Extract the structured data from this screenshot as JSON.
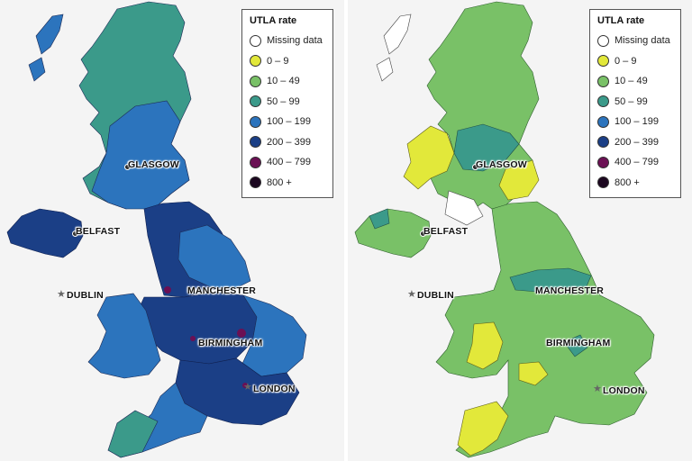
{
  "legend": {
    "title": "UTLA rate",
    "items": [
      {
        "label": "Missing data",
        "color": "#ffffff"
      },
      {
        "label": "0 – 9",
        "color": "#e2e83a"
      },
      {
        "label": "10 – 49",
        "color": "#79c167"
      },
      {
        "label": "50 – 99",
        "color": "#3b9a8a"
      },
      {
        "label": "100 – 199",
        "color": "#2c74bd"
      },
      {
        "label": "200 – 399",
        "color": "#1b3f86"
      },
      {
        "label": "400 – 799",
        "color": "#6b1054"
      },
      {
        "label": "800 +",
        "color": "#1c0720"
      }
    ]
  },
  "cities": {
    "glasgow": "GLASGOW",
    "belfast": "BELFAST",
    "dublin": "DUBLIN",
    "manchester": "MANCHESTER",
    "birmingham": "BIRMINGHAM",
    "london": "LONDON"
  },
  "maps": {
    "left": {
      "scotland_color": "#3b9a8a",
      "north_ireland_color": "#1b3f86",
      "dominant_color": "#2c74bd",
      "dense_color": "#1b3f86"
    },
    "right": {
      "scotland_color": "#79c167",
      "north_ireland_color": "#79c167",
      "dominant_color": "#79c167",
      "low_color": "#e2e83a"
    }
  }
}
